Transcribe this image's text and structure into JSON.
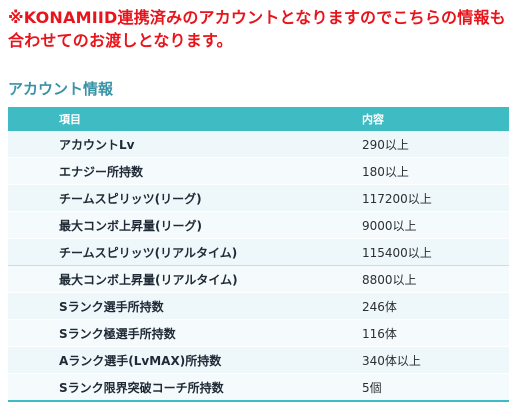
{
  "notice": "※KONAMIID連携済みのアカウントとなりますのでこちらの情報も合わせてのお渡しとなります。",
  "section_title": "アカウント情報",
  "table": {
    "headers": [
      "項目",
      "内容"
    ],
    "rows": [
      {
        "item": "アカウントLv",
        "value": "290以上"
      },
      {
        "item": "エナジー所持数",
        "value": "180以上"
      },
      {
        "item": "チームスピリッツ(リーグ)",
        "value": "117200以上"
      },
      {
        "item": "最大コンボ上昇量(リーグ)",
        "value": "9000以上"
      },
      {
        "item": "チームスピリッツ(リアルタイム)",
        "value": "115400以上"
      },
      {
        "item": "最大コンボ上昇量(リアルタイム)",
        "value": "8800以上"
      },
      {
        "item": "Sランク選手所持数",
        "value": "246体"
      },
      {
        "item": "Sランク極選手所持数",
        "value": "116体"
      },
      {
        "item": "Aランク選手(LvMAX)所持数",
        "value": "340体以上"
      },
      {
        "item": "Sランク限界突破コーチ所持数",
        "value": "5個"
      }
    ]
  },
  "colors": {
    "notice": "#e8141b",
    "section_title": "#3a92a6",
    "header_bg": "#3fbcc3"
  }
}
